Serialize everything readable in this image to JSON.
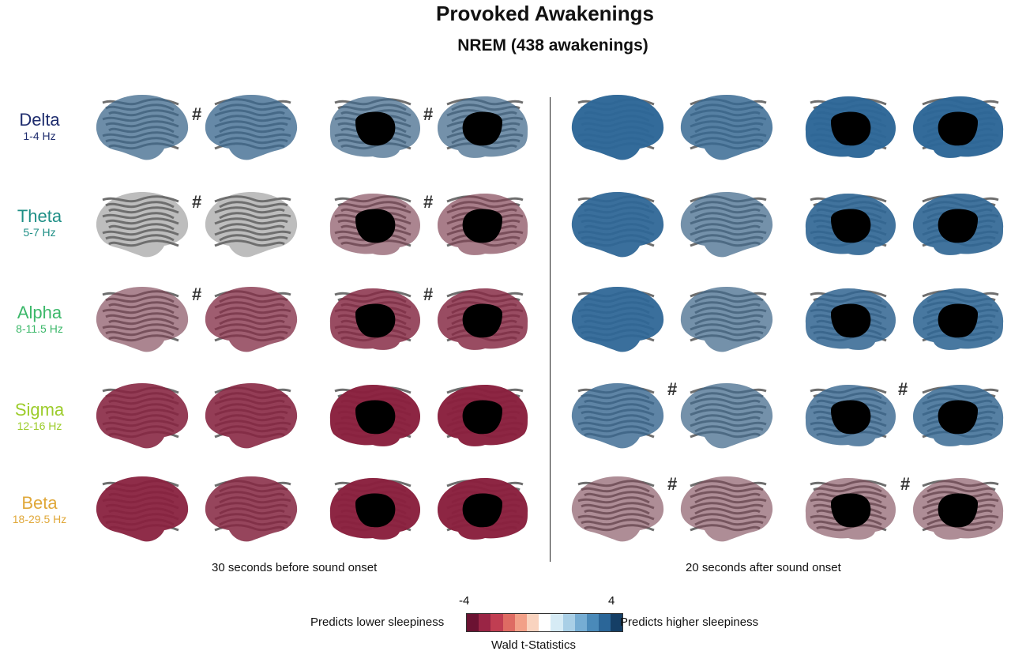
{
  "title": "Provoked Awakenings",
  "subtitle": "NREM (438 awakenings)",
  "bands": [
    {
      "name": "Delta",
      "freq": "1-4 Hz",
      "color": "#1f2d6e"
    },
    {
      "name": "Theta",
      "freq": "5-7 Hz",
      "color": "#1f8f86"
    },
    {
      "name": "Alpha",
      "freq": "8-11.5 Hz",
      "color": "#3cb86a"
    },
    {
      "name": "Sigma",
      "freq": "12-16 Hz",
      "color": "#9ccc2a"
    },
    {
      "name": "Beta",
      "freq": "18-29.5 Hz",
      "color": "#e0a83a"
    }
  ],
  "hash_symbol": "#",
  "panels": {
    "left_title": "30 seconds before sound onset",
    "right_title": "20 seconds after sound onset"
  },
  "colorbar": {
    "min_label": "-4",
    "max_label": "4",
    "left_label": "Predicts lower sleepiness",
    "right_label": "Predicts higher sleepiness",
    "axis_label": "Wald t-Statistics",
    "colors": [
      "#6b1232",
      "#9a2545",
      "#c03e52",
      "#de6b63",
      "#f2a088",
      "#f9d3bf",
      "#ffffff",
      "#d6ebf5",
      "#a9cfe6",
      "#76add3",
      "#4a8ab9",
      "#2b6698",
      "#153f66"
    ]
  },
  "colors": {
    "cortex_gyri": "#bdbdbd",
    "cortex_sulci": "#6e6e6e",
    "positive": "#2b6698",
    "negative": "#8a1d3c",
    "medial_wall": "#000000"
  }
}
